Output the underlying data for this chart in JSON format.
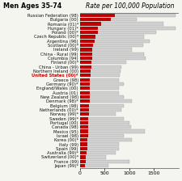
{
  "title_left": "Men Ages 35-74",
  "title_right": "Rate per 100,000 Population",
  "countries": [
    "Russian Federation (98)",
    "Bulgaria (00)",
    "Romania (01)*",
    "Hungary (01)*",
    "Poland (00)*",
    "Czech Republic (00)*",
    "Argentina (96)",
    "Scotland (00)*",
    "Ireland (99)",
    "China - Rural (99)",
    "Columbia (94)",
    "Finland (00)*",
    "China - Urban (99)",
    "Northern Ireland (00)",
    "United States (00)*",
    "Greece (98)",
    "Germany (90)*",
    "England/Wales (00)",
    "Austria (01)",
    "New Zealand (98)",
    "Denmark (98)*",
    "Belgium (98)",
    "Netherlands (00)*",
    "Norway (99)*",
    "Sweden (99)*",
    "Portugal (00)",
    "Canada (98)",
    "Mexico (95)",
    "Israel (98)",
    "Korea (00)*",
    "Italy (99)",
    "Spain (99)",
    "Australia (99)*",
    "Switzerland (00)*",
    "France (99)",
    "Japan (99)*"
  ],
  "red_values": [
    700,
    620,
    430,
    370,
    360,
    310,
    290,
    265,
    250,
    245,
    240,
    235,
    225,
    215,
    210,
    205,
    200,
    200,
    195,
    195,
    190,
    185,
    180,
    175,
    170,
    170,
    165,
    165,
    160,
    155,
    145,
    140,
    130,
    120,
    110,
    100
  ],
  "gray_values": [
    1950,
    1150,
    1700,
    1950,
    1550,
    1300,
    1420,
    1280,
    1050,
    1300,
    1330,
    940,
    840,
    830,
    800,
    790,
    890,
    790,
    790,
    890,
    1060,
    890,
    840,
    730,
    890,
    1010,
    1040,
    1320,
    890,
    1050,
    790,
    790,
    720,
    530,
    1000,
    580
  ],
  "us_index": 14,
  "bar_red": "#c00000",
  "bar_gray": "#d0d0d0",
  "bar_edge": "#999999",
  "bg_color": "#f5f5f0",
  "xlim": [
    0,
    2050
  ],
  "xticks": [
    0,
    500,
    1000,
    1500
  ],
  "xlim_display": 2000
}
